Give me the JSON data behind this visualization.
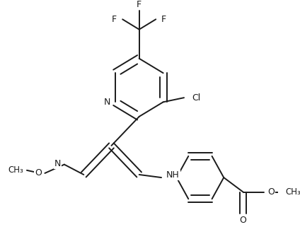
{
  "background": "#ffffff",
  "figsize": [
    4.24,
    3.38
  ],
  "dpi": 100,
  "line_color": "#1a1a1a",
  "text_color": "#1a1a1a",
  "line_width": 1.4,
  "font_size": 9.0,
  "xlim": [
    0,
    10
  ],
  "ylim": [
    0,
    8
  ]
}
